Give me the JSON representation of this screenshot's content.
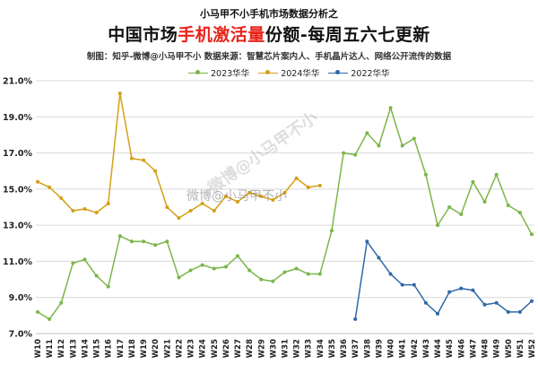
{
  "header": {
    "supertitle": "小马甲不小手机市场数据分析之",
    "title_pre": "中国市场",
    "title_highlight": "手机激活量",
    "title_post": "份额-每周五六七更新",
    "source": "制图：知乎-微博@小马甲不小   数据来源：智慧芯片案内人、手机晶片达人、网络公开流传的数据"
  },
  "watermark": {
    "text": "微博@小马甲不小",
    "text2": "微博@小马甲不小"
  },
  "colors": {
    "s2023": "#7ab648",
    "s2024": "#d4a017",
    "s2022": "#2e68a8",
    "grid": "#d9d9d9"
  },
  "chart_data": {
    "type": "line",
    "title": "中国市场手机激活量份额-每周五六七更新",
    "xlabel": "",
    "ylabel": "",
    "ylim": [
      7.0,
      21.0
    ],
    "yticks": [
      "7.0%",
      "9.0%",
      "11.0%",
      "13.0%",
      "15.0%",
      "17.0%",
      "19.0%",
      "21.0%"
    ],
    "ytick_values": [
      7,
      9,
      11,
      13,
      15,
      17,
      19,
      21
    ],
    "grid": true,
    "legend": "top-center",
    "categories": [
      "W10",
      "W11",
      "W12",
      "W13",
      "W14",
      "W15",
      "W16",
      "W17",
      "W18",
      "W19",
      "W20",
      "W21",
      "W22",
      "W23",
      "W24",
      "W25",
      "W26",
      "W27",
      "W28",
      "W29",
      "W30",
      "W31",
      "W32",
      "W33",
      "W34",
      "W35",
      "W36",
      "W37",
      "W38",
      "W39",
      "W40",
      "W41",
      "W42",
      "W43",
      "W44",
      "W45",
      "W46",
      "W47",
      "W48",
      "W49",
      "W50",
      "W51",
      "W52"
    ],
    "series": [
      {
        "name": "2023华华",
        "color": "#7ab648",
        "values": [
          8.2,
          7.8,
          8.7,
          10.9,
          11.1,
          10.2,
          9.6,
          12.4,
          12.1,
          12.1,
          11.9,
          12.1,
          10.1,
          10.5,
          10.8,
          10.6,
          10.7,
          11.3,
          10.5,
          10.0,
          9.9,
          10.4,
          10.6,
          10.3,
          10.3,
          12.7,
          17.0,
          16.9,
          18.1,
          17.4,
          19.5,
          17.4,
          17.8,
          15.8,
          13.0,
          14.0,
          13.6,
          15.4,
          14.3,
          15.8,
          14.1,
          13.7,
          12.5
        ]
      },
      {
        "name": "2024华华",
        "color": "#d4a017",
        "values": [
          15.4,
          15.1,
          14.5,
          13.8,
          13.9,
          13.7,
          14.2,
          20.3,
          16.7,
          16.6,
          16.0,
          14.0,
          13.4,
          13.8,
          14.2,
          13.8,
          14.6,
          14.3,
          14.8,
          14.6,
          14.4,
          14.8,
          15.6,
          15.1,
          15.2,
          null,
          null,
          null,
          null,
          null,
          null,
          null,
          null,
          null,
          null,
          null,
          null,
          null,
          null,
          null,
          null,
          null,
          null
        ]
      },
      {
        "name": "2022华华",
        "color": "#2e68a8",
        "values": [
          null,
          null,
          null,
          null,
          null,
          null,
          null,
          null,
          null,
          null,
          null,
          null,
          null,
          null,
          null,
          null,
          null,
          null,
          null,
          null,
          null,
          null,
          null,
          null,
          null,
          null,
          null,
          7.8,
          12.1,
          11.2,
          10.3,
          9.7,
          9.7,
          8.7,
          8.1,
          9.3,
          9.5,
          9.4,
          8.6,
          8.7,
          8.2,
          8.2,
          8.8
        ]
      }
    ]
  }
}
